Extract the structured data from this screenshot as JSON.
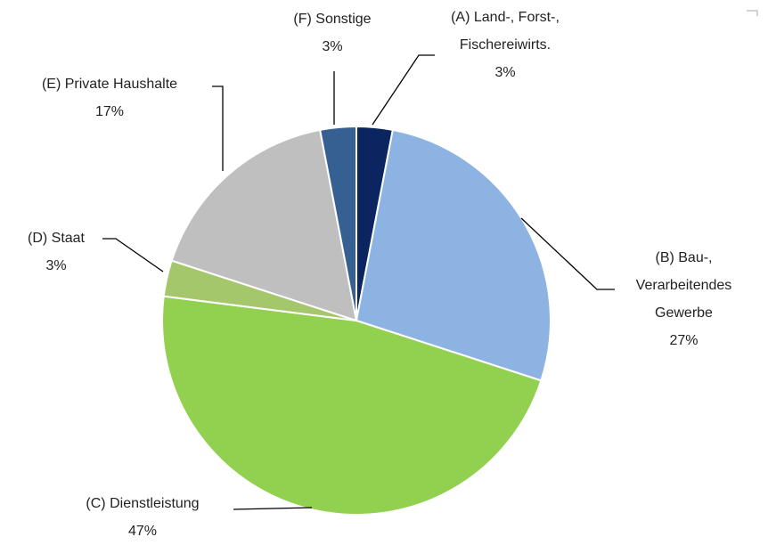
{
  "chart_data": {
    "type": "pie",
    "categories": [
      "(A) Land-, Forst-, Fischereiwirts.",
      "(B) Bau-, Verarbeitendes Gewerbe",
      "(C) Dienstleistung",
      "(D) Staat",
      "(E) Private Haushalte",
      "(F) Sonstige"
    ],
    "values": [
      3,
      27,
      47,
      3,
      17,
      3
    ],
    "value_labels": [
      "3%",
      "27%",
      "47%",
      "3%",
      "17%",
      "3%"
    ],
    "colors": [
      "#0b2560",
      "#8db3e2",
      "#92d050",
      "#a3c76a",
      "#bfbfbf",
      "#376092"
    ]
  }
}
